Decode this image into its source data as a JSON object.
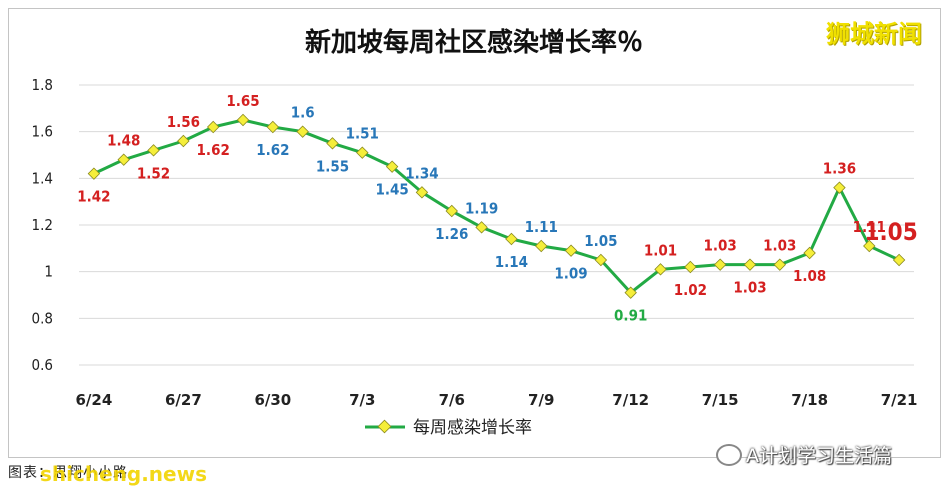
{
  "chart_data": {
    "type": "line",
    "title": "新加坡每周社区感染增长率％",
    "xlabel": "",
    "ylabel": "",
    "ylim": [
      0.6,
      1.8
    ],
    "yticks": [
      "0.6",
      "0.8",
      "1",
      "1.2",
      "1.4",
      "1.6",
      "1.8"
    ],
    "ytick_values": [
      0.6,
      0.8,
      1.0,
      1.2,
      1.4,
      1.6,
      1.8
    ],
    "xtick_labels": [
      "6/24",
      "6/27",
      "6/30",
      "7/3",
      "7/6",
      "7/9",
      "7/12",
      "7/15",
      "7/18",
      "7/21"
    ],
    "xtick_index": [
      0,
      3,
      6,
      9,
      12,
      15,
      18,
      21,
      24,
      27
    ],
    "legend_position": "bottom",
    "series": [
      {
        "name": "每周感染增长率",
        "color": "#22aa44",
        "marker_color": "#f5ee3a",
        "x": [
          "6/24",
          "6/25",
          "6/26",
          "6/27",
          "6/28",
          "6/29",
          "6/30",
          "7/1",
          "7/2",
          "7/3",
          "7/4",
          "7/5",
          "7/6",
          "7/7",
          "7/8",
          "7/9",
          "7/10",
          "7/11",
          "7/12",
          "7/13",
          "7/14",
          "7/15",
          "7/16",
          "7/17",
          "7/18",
          "7/19",
          "7/20",
          "7/21"
        ],
        "values": [
          1.42,
          1.48,
          1.52,
          1.56,
          1.62,
          1.65,
          1.62,
          1.6,
          1.55,
          1.51,
          1.45,
          1.34,
          1.26,
          1.19,
          1.14,
          1.11,
          1.09,
          1.05,
          0.91,
          1.01,
          1.02,
          1.03,
          1.03,
          1.03,
          1.08,
          1.36,
          1.11,
          1.05
        ]
      }
    ],
    "data_labels": [
      {
        "text": "1.42",
        "i": 0,
        "pos": "below",
        "color": "#d42020"
      },
      {
        "text": "1.48",
        "i": 1,
        "pos": "above",
        "color": "#d42020"
      },
      {
        "text": "1.52",
        "i": 2,
        "pos": "below",
        "color": "#d42020"
      },
      {
        "text": "1.56",
        "i": 3,
        "pos": "above",
        "color": "#d42020"
      },
      {
        "text": "1.62",
        "i": 4,
        "pos": "below",
        "color": "#d42020"
      },
      {
        "text": "1.65",
        "i": 5,
        "pos": "above",
        "color": "#d42020"
      },
      {
        "text": "1.62",
        "i": 6,
        "pos": "below",
        "color": "#2877b8"
      },
      {
        "text": "1.6",
        "i": 7,
        "pos": "above",
        "color": "#2877b8"
      },
      {
        "text": "1.55",
        "i": 8,
        "pos": "below",
        "color": "#2877b8"
      },
      {
        "text": "1.51",
        "i": 9,
        "pos": "above",
        "color": "#2877b8"
      },
      {
        "text": "1.45",
        "i": 10,
        "pos": "below",
        "color": "#2877b8"
      },
      {
        "text": "1.34",
        "i": 11,
        "pos": "above",
        "color": "#2877b8"
      },
      {
        "text": "1.26",
        "i": 12,
        "pos": "below",
        "color": "#2877b8"
      },
      {
        "text": "1.19",
        "i": 13,
        "pos": "above",
        "color": "#2877b8"
      },
      {
        "text": "1.14",
        "i": 14,
        "pos": "below",
        "color": "#2877b8"
      },
      {
        "text": "1.11",
        "i": 15,
        "pos": "above",
        "color": "#2877b8"
      },
      {
        "text": "1.09",
        "i": 16,
        "pos": "below",
        "color": "#2877b8"
      },
      {
        "text": "1.05",
        "i": 17,
        "pos": "above",
        "color": "#2877b8"
      },
      {
        "text": "0.91",
        "i": 18,
        "pos": "below",
        "color": "#22aa44"
      },
      {
        "text": "1.01",
        "i": 19,
        "pos": "above",
        "color": "#d42020"
      },
      {
        "text": "1.02",
        "i": 20,
        "pos": "below",
        "color": "#d42020"
      },
      {
        "text": "1.03",
        "i": 21,
        "pos": "above",
        "color": "#d42020"
      },
      {
        "text": "1.03",
        "i": 22,
        "pos": "below",
        "color": "#d42020"
      },
      {
        "text": "1.03",
        "i": 23,
        "pos": "above",
        "color": "#d42020"
      },
      {
        "text": "1.08",
        "i": 24,
        "pos": "below",
        "color": "#d42020"
      },
      {
        "text": "1.36",
        "i": 25,
        "pos": "above",
        "color": "#d42020"
      },
      {
        "text": "1.11",
        "i": 26,
        "pos": "above",
        "color": "#d42020"
      },
      {
        "text": "1.05",
        "i": 27,
        "pos": "above-large",
        "color": "#d42020"
      }
    ]
  },
  "watermark": "狮城新闻",
  "source_text": "图表：思翔小小路",
  "site_text": "shicheng.news",
  "brand_text": "A计划学习生活篇"
}
